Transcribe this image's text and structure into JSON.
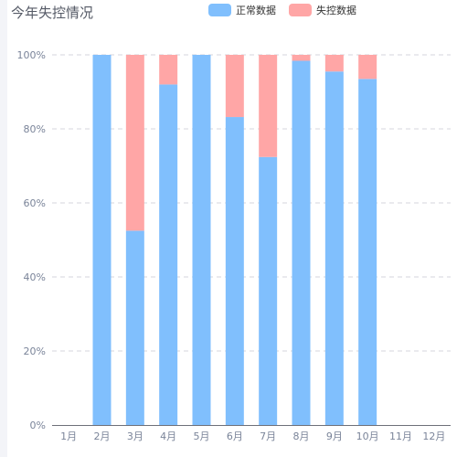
{
  "chart_data": {
    "type": "bar",
    "stacked": true,
    "title": "今年失控情况",
    "categories": [
      "1月",
      "2月",
      "3月",
      "4月",
      "5月",
      "6月",
      "7月",
      "8月",
      "9月",
      "10月",
      "11月",
      "12月"
    ],
    "series": [
      {
        "name": "正常数据",
        "color": "#80bffd",
        "values": [
          0,
          100,
          52.5,
          92,
          100,
          83.2,
          72.4,
          98.4,
          95.5,
          93.5,
          0,
          0
        ]
      },
      {
        "name": "失控数据",
        "color": "#ffa6a6",
        "values": [
          0,
          0,
          47.5,
          8,
          0,
          16.8,
          27.6,
          1.6,
          4.5,
          6.5,
          0,
          0
        ]
      }
    ],
    "yticks": [
      "0%",
      "20%",
      "40%",
      "60%",
      "80%",
      "100%"
    ],
    "ylim": [
      0,
      100
    ],
    "grid": true,
    "legend_position": "top"
  }
}
